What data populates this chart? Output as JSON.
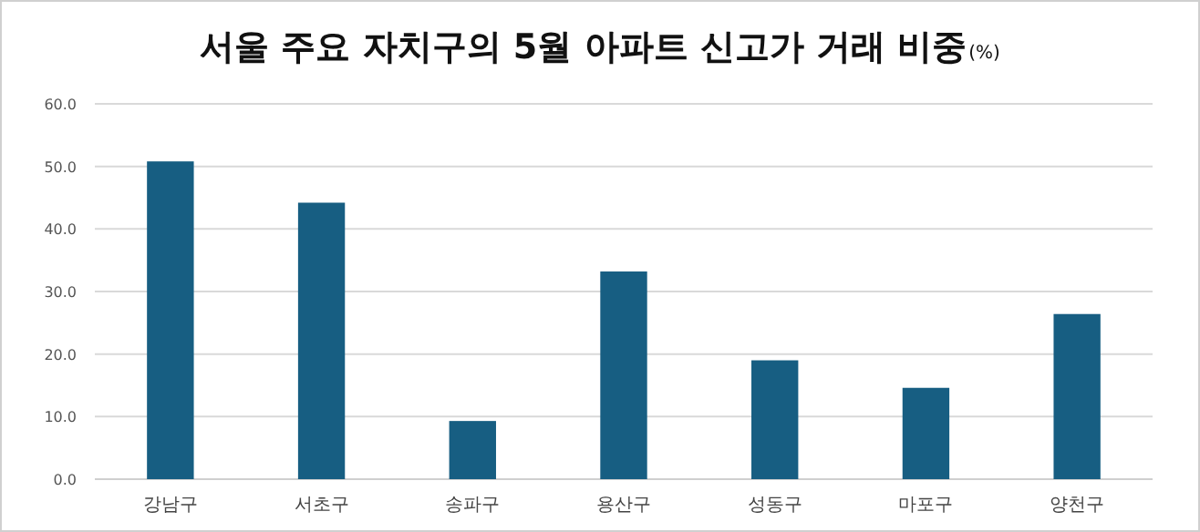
{
  "chart_data": {
    "type": "bar",
    "title": "서울 주요 자치구의 5월 아파트 신고가 거래 비중",
    "subtitle": "(%)",
    "categories": [
      "강남구",
      "서초구",
      "송파구",
      "용산구",
      "성동구",
      "마포구",
      "양천구"
    ],
    "values": [
      50.8,
      44.2,
      9.3,
      33.2,
      19.0,
      14.6,
      26.4
    ],
    "color": "#175e82",
    "ylim": [
      0,
      60
    ],
    "yticks": [
      {
        "value": 0,
        "label": "0.0"
      },
      {
        "value": 10,
        "label": "10.0"
      },
      {
        "value": 20,
        "label": "20.0"
      },
      {
        "value": 30,
        "label": "30.0"
      },
      {
        "value": 40,
        "label": "40.0"
      },
      {
        "value": 50,
        "label": "50.0"
      },
      {
        "value": 60,
        "label": "60.0"
      }
    ],
    "grid": "y"
  }
}
